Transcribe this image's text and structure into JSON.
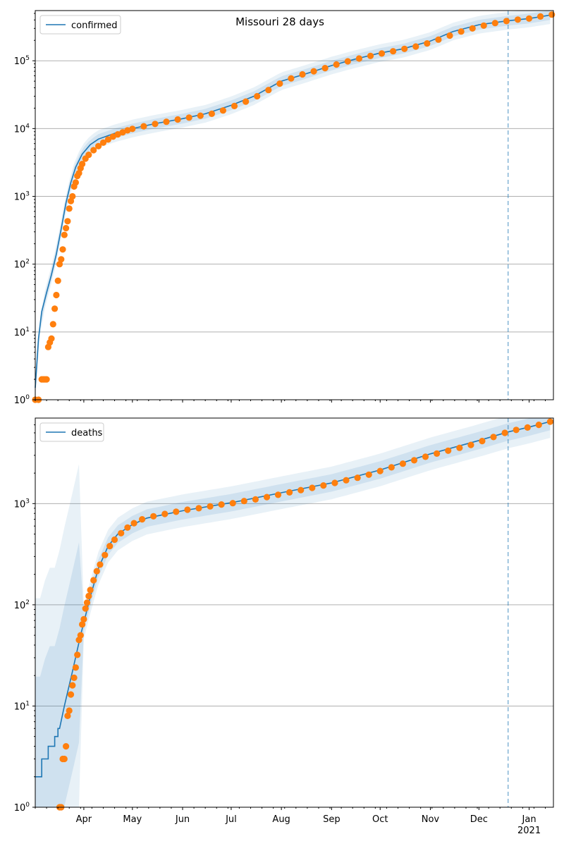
{
  "figure_title": "Missouri 28 days",
  "colors": {
    "line": "#1f77b4",
    "points": "#ff7f0e",
    "band": "#1f77b4",
    "grid": "#b0b0b0",
    "vline": "#1f77b4"
  },
  "x_axis": {
    "type": "date",
    "range": [
      "2020-03-02",
      "2021-01-16"
    ],
    "ticks": [
      {
        "date": "2020-04-01",
        "label": "Apr"
      },
      {
        "date": "2020-05-01",
        "label": "May"
      },
      {
        "date": "2020-06-01",
        "label": "Jun"
      },
      {
        "date": "2020-07-01",
        "label": "Jul"
      },
      {
        "date": "2020-08-01",
        "label": "Aug"
      },
      {
        "date": "2020-09-01",
        "label": "Sep"
      },
      {
        "date": "2020-10-01",
        "label": "Oct"
      },
      {
        "date": "2020-11-01",
        "label": "Nov"
      },
      {
        "date": "2020-12-01",
        "label": "Dec"
      },
      {
        "date": "2021-01-01",
        "label": "Jan"
      }
    ],
    "year_label": "2021",
    "forecast_start": "2020-12-19"
  },
  "chart_data": [
    {
      "type": "line",
      "legend": "confirmed",
      "legend_position": "upper-left",
      "y_scale": "log",
      "ylim": [
        1,
        550000
      ],
      "y_ticks": [
        {
          "value": 1,
          "base": "10",
          "exp": "0"
        },
        {
          "value": 10,
          "base": "10",
          "exp": "1"
        },
        {
          "value": 100,
          "base": "10",
          "exp": "2"
        },
        {
          "value": 1000,
          "base": "10",
          "exp": "3"
        },
        {
          "value": 10000,
          "base": "10",
          "exp": "4"
        },
        {
          "value": 100000,
          "base": "10",
          "exp": "5"
        }
      ],
      "grid": "horizontal",
      "line": [
        [
          "2020-03-02",
          1.5
        ],
        [
          "2020-03-04",
          8
        ],
        [
          "2020-03-06",
          20
        ],
        [
          "2020-03-09",
          38
        ],
        [
          "2020-03-12",
          70
        ],
        [
          "2020-03-15",
          140
        ],
        [
          "2020-03-18",
          330
        ],
        [
          "2020-03-21",
          800
        ],
        [
          "2020-03-24",
          1600
        ],
        [
          "2020-03-27",
          2700
        ],
        [
          "2020-03-31",
          4200
        ],
        [
          "2020-04-05",
          5800
        ],
        [
          "2020-04-10",
          7000
        ],
        [
          "2020-04-20",
          8500
        ],
        [
          "2020-05-01",
          10000
        ],
        [
          "2020-05-15",
          11800
        ],
        [
          "2020-06-01",
          14000
        ],
        [
          "2020-06-15",
          16500
        ],
        [
          "2020-07-01",
          22000
        ],
        [
          "2020-07-15",
          30000
        ],
        [
          "2020-08-01",
          50000
        ],
        [
          "2020-08-15",
          63000
        ],
        [
          "2020-09-01",
          85000
        ],
        [
          "2020-09-15",
          105000
        ],
        [
          "2020-10-01",
          130000
        ],
        [
          "2020-10-15",
          150000
        ],
        [
          "2020-11-01",
          195000
        ],
        [
          "2020-11-15",
          270000
        ],
        [
          "2020-12-01",
          340000
        ],
        [
          "2020-12-19",
          390000
        ],
        [
          "2021-01-01",
          420000
        ],
        [
          "2021-01-16",
          480000
        ]
      ],
      "points": [
        [
          "2020-03-02",
          1
        ],
        [
          "2020-03-04",
          1
        ],
        [
          "2020-03-06",
          2
        ],
        [
          "2020-03-07",
          2
        ],
        [
          "2020-03-08",
          2
        ],
        [
          "2020-03-09",
          2
        ],
        [
          "2020-03-10",
          6
        ],
        [
          "2020-03-11",
          7
        ],
        [
          "2020-03-12",
          8
        ],
        [
          "2020-03-13",
          13
        ],
        [
          "2020-03-14",
          22
        ],
        [
          "2020-03-15",
          35
        ],
        [
          "2020-03-16",
          57
        ],
        [
          "2020-03-17",
          100
        ],
        [
          "2020-03-18",
          118
        ],
        [
          "2020-03-19",
          165
        ],
        [
          "2020-03-20",
          270
        ],
        [
          "2020-03-21",
          340
        ],
        [
          "2020-03-22",
          430
        ],
        [
          "2020-03-23",
          660
        ],
        [
          "2020-03-24",
          850
        ],
        [
          "2020-03-25",
          1000
        ],
        [
          "2020-03-26",
          1400
        ],
        [
          "2020-03-27",
          1600
        ],
        [
          "2020-03-28",
          2000
        ],
        [
          "2020-03-29",
          2200
        ],
        [
          "2020-03-30",
          2600
        ],
        [
          "2020-03-31",
          3000
        ],
        [
          "2020-04-02",
          3600
        ],
        [
          "2020-04-04",
          4100
        ],
        [
          "2020-04-07",
          4800
        ],
        [
          "2020-04-10",
          5500
        ],
        [
          "2020-04-13",
          6200
        ],
        [
          "2020-04-16",
          6900
        ],
        [
          "2020-04-19",
          7600
        ],
        [
          "2020-04-22",
          8200
        ],
        [
          "2020-04-25",
          8800
        ],
        [
          "2020-04-28",
          9400
        ],
        [
          "2020-05-01",
          9900
        ],
        [
          "2020-05-08",
          10800
        ],
        [
          "2020-05-15",
          11700
        ],
        [
          "2020-05-22",
          12600
        ],
        [
          "2020-05-29",
          13600
        ],
        [
          "2020-06-05",
          14500
        ],
        [
          "2020-06-12",
          15500
        ],
        [
          "2020-06-19",
          16500
        ],
        [
          "2020-06-26",
          18500
        ],
        [
          "2020-07-03",
          21500
        ],
        [
          "2020-07-10",
          25000
        ],
        [
          "2020-07-17",
          30000
        ],
        [
          "2020-07-24",
          37000
        ],
        [
          "2020-07-31",
          46000
        ],
        [
          "2020-08-07",
          55000
        ],
        [
          "2020-08-14",
          63000
        ],
        [
          "2020-08-21",
          70000
        ],
        [
          "2020-08-28",
          78000
        ],
        [
          "2020-09-04",
          88000
        ],
        [
          "2020-09-11",
          98000
        ],
        [
          "2020-09-18",
          108000
        ],
        [
          "2020-09-25",
          118000
        ],
        [
          "2020-10-02",
          128000
        ],
        [
          "2020-10-09",
          138000
        ],
        [
          "2020-10-16",
          150000
        ],
        [
          "2020-10-23",
          162000
        ],
        [
          "2020-10-30",
          180000
        ],
        [
          "2020-11-06",
          205000
        ],
        [
          "2020-11-13",
          235000
        ],
        [
          "2020-11-20",
          270000
        ],
        [
          "2020-11-27",
          300000
        ],
        [
          "2020-12-04",
          330000
        ],
        [
          "2020-12-11",
          360000
        ],
        [
          "2020-12-18",
          385000
        ],
        [
          "2020-12-25",
          405000
        ],
        [
          "2021-01-01",
          420000
        ],
        [
          "2021-01-08",
          450000
        ],
        [
          "2021-01-15",
          480000
        ]
      ]
    },
    {
      "type": "line",
      "legend": "deaths",
      "legend_position": "upper-left",
      "y_scale": "log",
      "ylim": [
        1,
        7000
      ],
      "y_ticks": [
        {
          "value": 1,
          "base": "10",
          "exp": "0"
        },
        {
          "value": 10,
          "base": "10",
          "exp": "1"
        },
        {
          "value": 100,
          "base": "10",
          "exp": "2"
        },
        {
          "value": 1000,
          "base": "10",
          "exp": "3"
        }
      ],
      "grid": "horizontal",
      "line": [
        [
          "2020-03-02",
          2
        ],
        [
          "2020-03-06",
          2
        ],
        [
          "2020-03-06",
          3
        ],
        [
          "2020-03-10",
          3
        ],
        [
          "2020-03-10",
          4
        ],
        [
          "2020-03-14",
          4
        ],
        [
          "2020-03-14",
          5
        ],
        [
          "2020-03-16",
          5
        ],
        [
          "2020-03-16",
          6
        ],
        [
          "2020-03-17",
          6
        ],
        [
          "2020-03-20",
          10
        ],
        [
          "2020-03-25",
          22
        ],
        [
          "2020-03-30",
          50
        ],
        [
          "2020-04-05",
          120
        ],
        [
          "2020-04-10",
          230
        ],
        [
          "2020-04-16",
          380
        ],
        [
          "2020-04-22",
          500
        ],
        [
          "2020-05-01",
          620
        ],
        [
          "2020-05-10",
          720
        ],
        [
          "2020-06-01",
          850
        ],
        [
          "2020-07-01",
          1020
        ],
        [
          "2020-08-01",
          1280
        ],
        [
          "2020-09-01",
          1600
        ],
        [
          "2020-10-01",
          2150
        ],
        [
          "2020-11-01",
          3100
        ],
        [
          "2020-12-01",
          4200
        ],
        [
          "2020-12-19",
          5100
        ],
        [
          "2021-01-01",
          5700
        ],
        [
          "2021-01-16",
          6600
        ]
      ],
      "points": [
        [
          "2020-03-17",
          1
        ],
        [
          "2020-03-18",
          1
        ],
        [
          "2020-03-19",
          3
        ],
        [
          "2020-03-20",
          3
        ],
        [
          "2020-03-21",
          4
        ],
        [
          "2020-03-22",
          8
        ],
        [
          "2020-03-23",
          9
        ],
        [
          "2020-03-24",
          13
        ],
        [
          "2020-03-25",
          16
        ],
        [
          "2020-03-26",
          19
        ],
        [
          "2020-03-27",
          24
        ],
        [
          "2020-03-28",
          32
        ],
        [
          "2020-03-29",
          45
        ],
        [
          "2020-03-30",
          50
        ],
        [
          "2020-03-31",
          64
        ],
        [
          "2020-04-01",
          72
        ],
        [
          "2020-04-02",
          92
        ],
        [
          "2020-04-03",
          105
        ],
        [
          "2020-04-04",
          122
        ],
        [
          "2020-04-05",
          140
        ],
        [
          "2020-04-07",
          175
        ],
        [
          "2020-04-09",
          215
        ],
        [
          "2020-04-11",
          250
        ],
        [
          "2020-04-14",
          310
        ],
        [
          "2020-04-17",
          380
        ],
        [
          "2020-04-20",
          440
        ],
        [
          "2020-04-24",
          510
        ],
        [
          "2020-04-28",
          580
        ],
        [
          "2020-05-02",
          640
        ],
        [
          "2020-05-07",
          700
        ],
        [
          "2020-05-14",
          750
        ],
        [
          "2020-05-21",
          790
        ],
        [
          "2020-05-28",
          830
        ],
        [
          "2020-06-04",
          870
        ],
        [
          "2020-06-11",
          900
        ],
        [
          "2020-06-18",
          940
        ],
        [
          "2020-06-25",
          980
        ],
        [
          "2020-07-02",
          1010
        ],
        [
          "2020-07-09",
          1060
        ],
        [
          "2020-07-16",
          1100
        ],
        [
          "2020-07-23",
          1160
        ],
        [
          "2020-07-30",
          1220
        ],
        [
          "2020-08-06",
          1290
        ],
        [
          "2020-08-13",
          1360
        ],
        [
          "2020-08-20",
          1430
        ],
        [
          "2020-08-27",
          1510
        ],
        [
          "2020-09-03",
          1600
        ],
        [
          "2020-09-10",
          1700
        ],
        [
          "2020-09-17",
          1800
        ],
        [
          "2020-09-24",
          1930
        ],
        [
          "2020-10-01",
          2100
        ],
        [
          "2020-10-08",
          2280
        ],
        [
          "2020-10-15",
          2480
        ],
        [
          "2020-10-22",
          2680
        ],
        [
          "2020-10-29",
          2900
        ],
        [
          "2020-11-05",
          3120
        ],
        [
          "2020-11-12",
          3330
        ],
        [
          "2020-11-19",
          3560
        ],
        [
          "2020-11-26",
          3800
        ],
        [
          "2020-12-03",
          4150
        ],
        [
          "2020-12-10",
          4550
        ],
        [
          "2020-12-17",
          5000
        ],
        [
          "2020-12-24",
          5350
        ],
        [
          "2020-12-31",
          5650
        ],
        [
          "2021-01-07",
          6000
        ],
        [
          "2021-01-14",
          6450
        ]
      ]
    }
  ]
}
